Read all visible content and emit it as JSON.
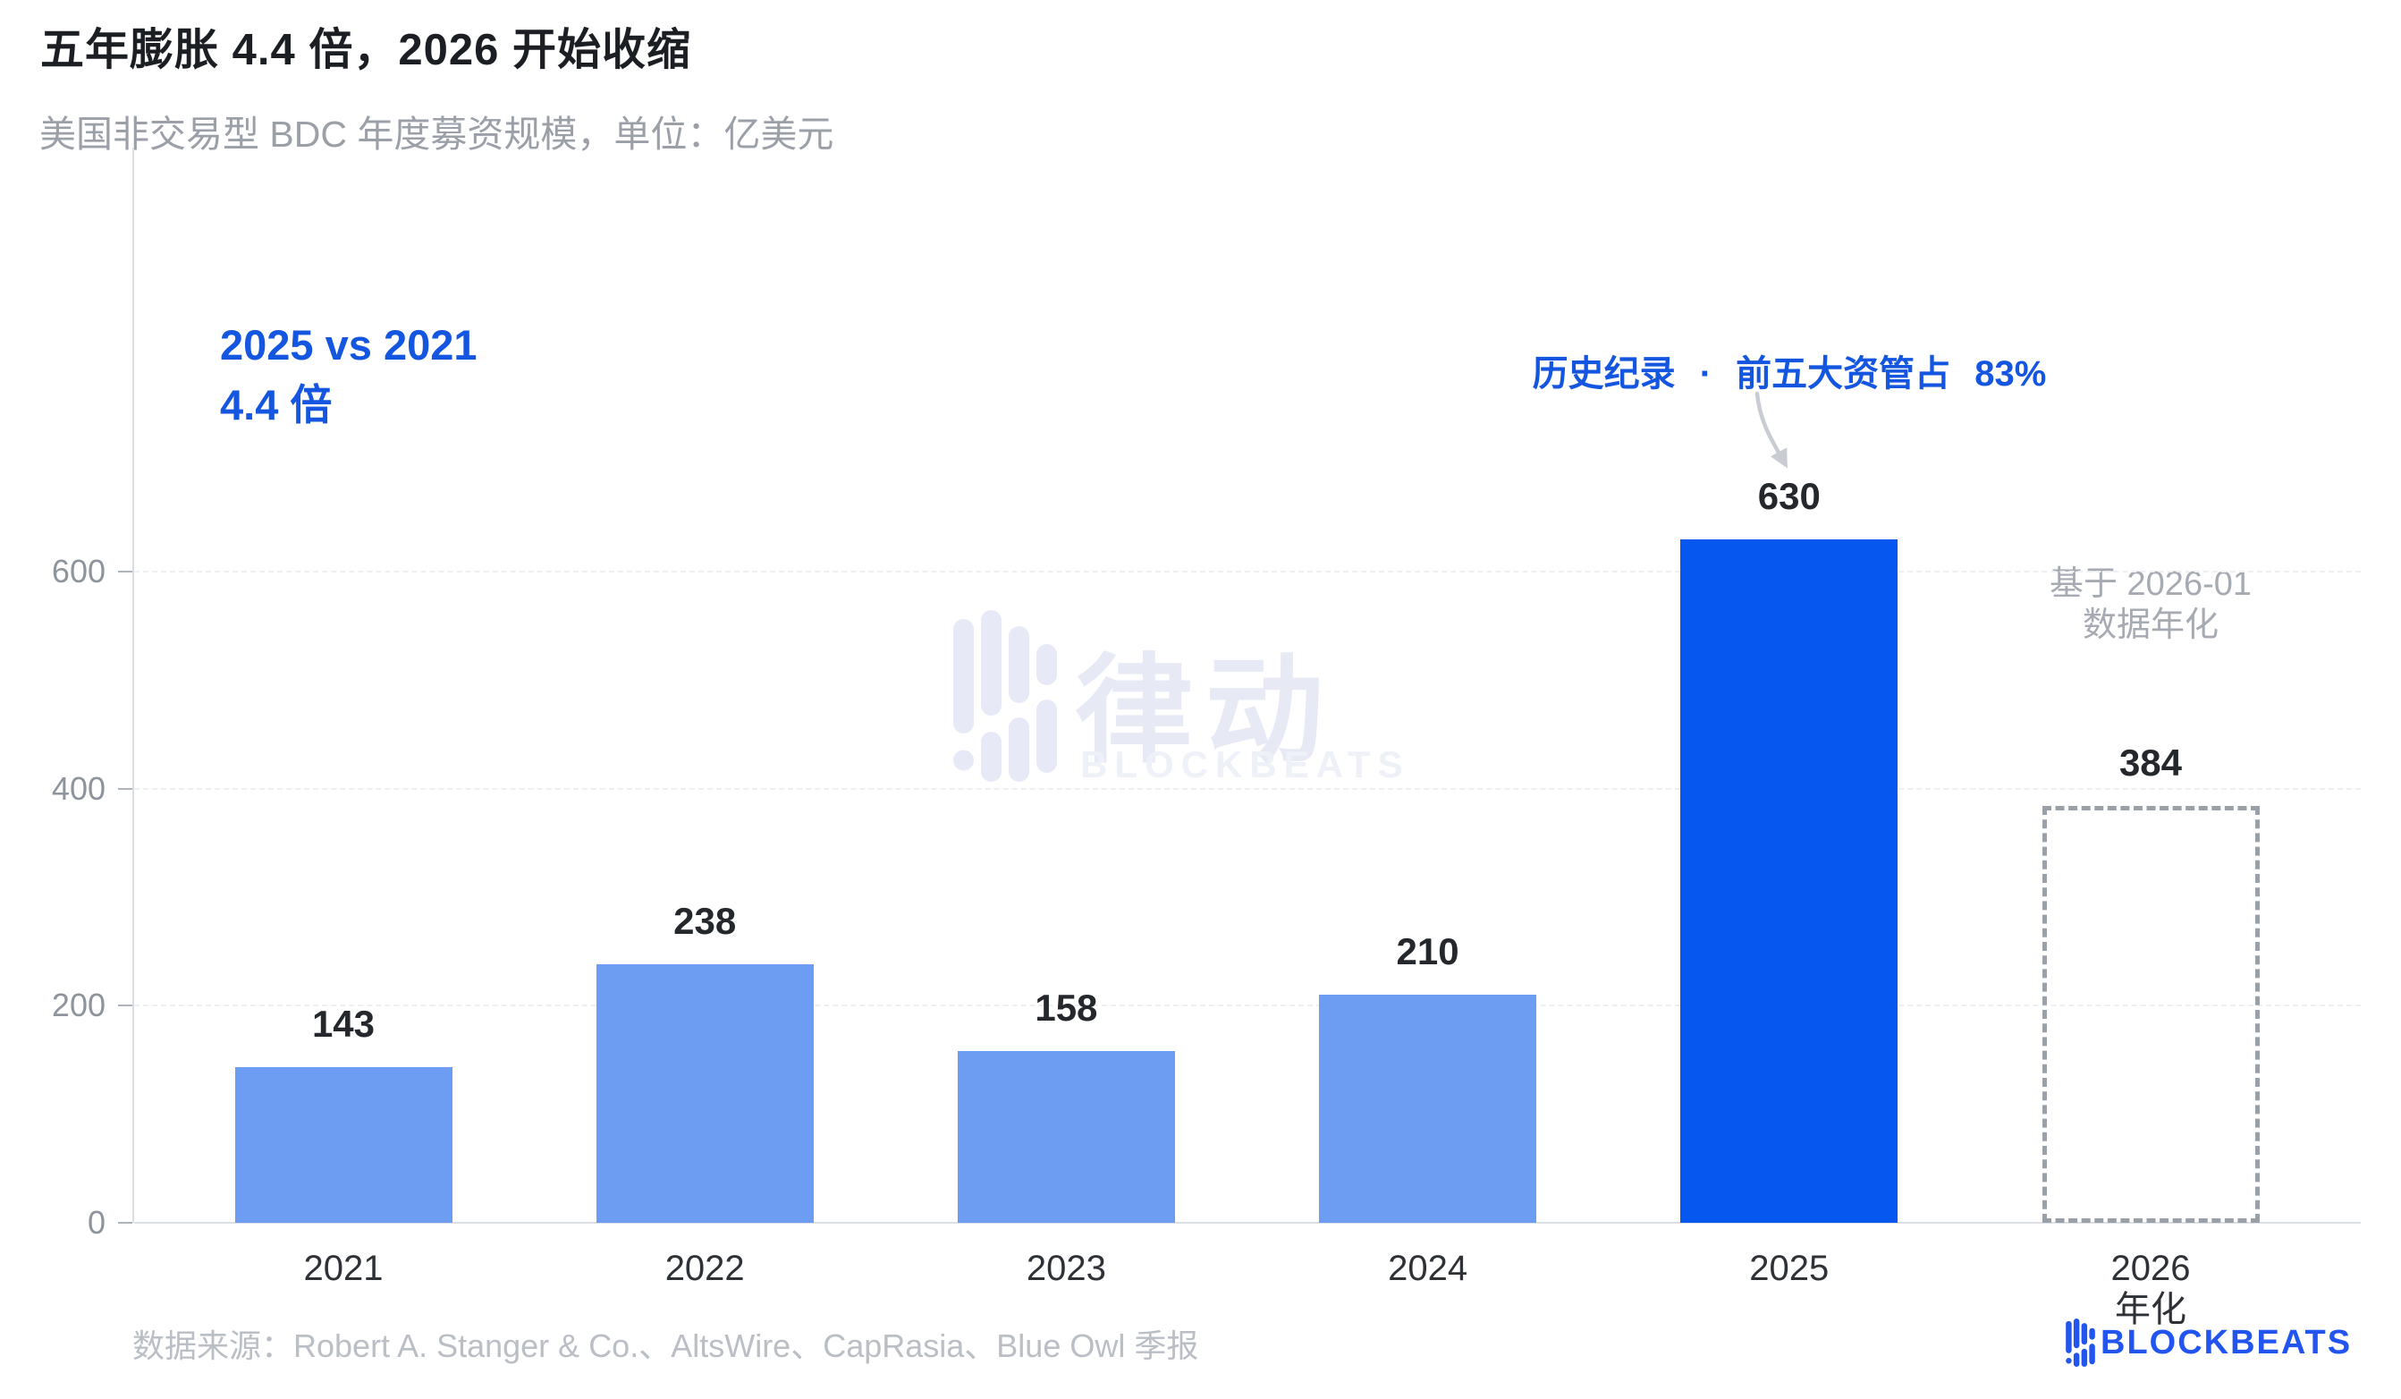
{
  "title": "五年膨胀 4.4 倍，2026 开始收缩",
  "subtitle": "美国非交易型 BDC 年度募资规模，单位：亿美元",
  "annotations": {
    "comparison_line1": "2025 vs 2021",
    "comparison_line2": "4.4 倍",
    "record_note": "历史纪录 · 前五大资管占 83%",
    "annualized_line1": "基于 2026-01",
    "annualized_line2": "数据年化"
  },
  "chart_data": {
    "type": "bar",
    "title": "美国非交易型 BDC 年度募资规模",
    "unit": "亿美元",
    "categories": [
      "2021",
      "2022",
      "2023",
      "2024",
      "2025",
      "2026"
    ],
    "values": [
      143,
      238,
      158,
      210,
      630,
      384
    ],
    "bar_styles": [
      "solid-light",
      "solid-light",
      "solid-light",
      "solid-light",
      "solid-dark",
      "dashed-outline"
    ],
    "x_sublabels": [
      "",
      "",
      "",
      "",
      "",
      "年化"
    ],
    "y_ticks": [
      0,
      200,
      400,
      600
    ],
    "ylim": [
      0,
      700
    ],
    "grid": "horizontal-dashed",
    "legend": null
  },
  "colors": {
    "bar_light": "#6d9df2",
    "bar_dark": "#0656f0",
    "dashed_outline": "#9aa0a8",
    "accent_blue_text": "#1456e0",
    "logo_blue": "#2254f0"
  },
  "footer": {
    "source": "数据来源：Robert A. Stanger & Co.、AltsWire、CapRasia、Blue Owl 季报"
  },
  "watermark": {
    "cn": "律动",
    "en": "BLOCKBEATS"
  },
  "logo": {
    "text": "BLOCKBEATS"
  }
}
